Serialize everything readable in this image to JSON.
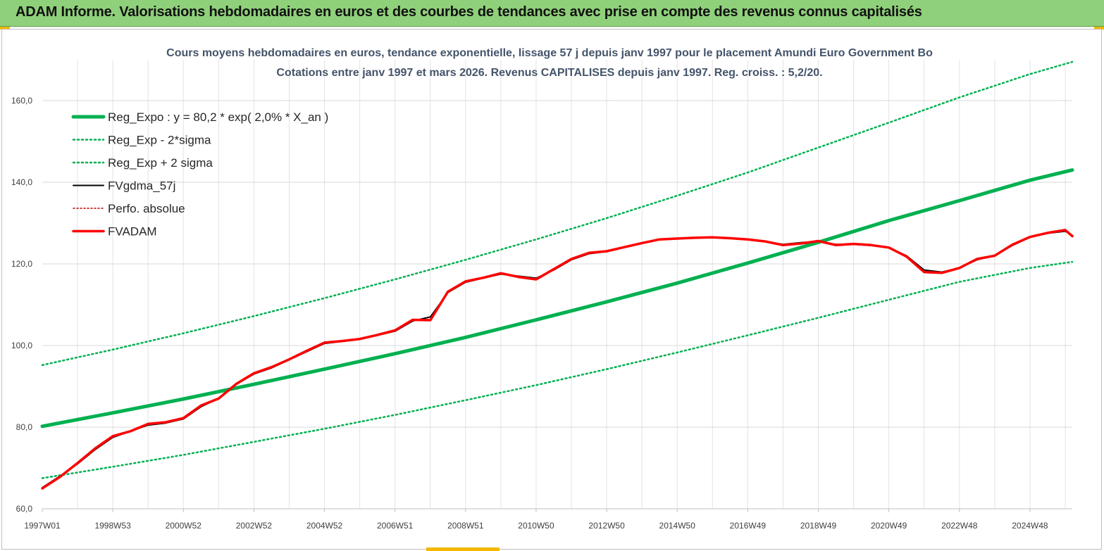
{
  "banner": {
    "title": "ADAM Informe. Valorisations hebdomadaires en euros et des courbes de tendances avec prise en compte des revenus connus capitalisés"
  },
  "colors": {
    "banner_bg": "#8fd07a",
    "regression": "#00b050",
    "band": "#00b050",
    "fvgdma": "#000000",
    "perfo": "#c00000",
    "fvadam": "#ff0000",
    "title_text": "#44546a"
  },
  "chart_data": {
    "type": "line",
    "title": "Cours moyens hebdomadaires en euros, tendance exponentielle, lissage 57 j depuis janv 1997  pour le placement Amundi Euro Government Bo",
    "subtitle": "Cotations entre janv 1997 et mars 2026. Revenus  CAPITALISES  depuis janv 1997. Reg. croiss. : 5,2/20.",
    "xlabel": "",
    "ylabel": "",
    "x_tick_labels": [
      "1997W01",
      "1998W53",
      "2000W52",
      "2002W52",
      "2004W52",
      "2006W51",
      "2008W51",
      "2010W50",
      "2012W50",
      "2014W50",
      "2016W49",
      "2018W49",
      "2020W49",
      "2022W48",
      "2024W48"
    ],
    "x_tick_years": [
      1997.0,
      1999.0,
      2001.0,
      2003.0,
      2005.0,
      2007.0,
      2009.0,
      2011.0,
      2013.0,
      2015.0,
      2017.0,
      2019.0,
      2021.0,
      2023.0,
      2025.0
    ],
    "y_tick_labels": [
      "60,0",
      "80,0",
      "100,0",
      "120,0",
      "140,0",
      "160,0"
    ],
    "xlim": [
      1997.0,
      2026.2
    ],
    "ylim": [
      60,
      170
    ],
    "y_ticks": [
      60,
      80,
      100,
      120,
      140,
      160
    ],
    "grid": true,
    "legend_position": "top-left",
    "legend": [
      "Reg_Expo : y = 80,2 * exp( 2,0% *  X_an )",
      "Reg_Exp - 2*sigma",
      "Reg_Exp + 2 sigma",
      "FVgdma_57j",
      "Perfo. absolue",
      "FVADAM"
    ],
    "series": [
      {
        "name": "Reg_Expo : y = 80,2 * exp( 2,0% *  X_an )",
        "style": "solid-thick",
        "x": [
          1997.0,
          1999.0,
          2001.0,
          2003.0,
          2005.0,
          2007.0,
          2009.0,
          2011.0,
          2013.0,
          2015.0,
          2017.0,
          2019.0,
          2021.0,
          2023.0,
          2025.0,
          2026.2
        ],
        "y": [
          80.2,
          83.5,
          86.9,
          90.5,
          94.2,
          98.0,
          102.0,
          106.3,
          110.7,
          115.3,
          120.2,
          125.3,
          130.6,
          135.5,
          140.5,
          143.0
        ]
      },
      {
        "name": "Reg_Exp - 2*sigma",
        "style": "dotted",
        "x": [
          1997.0,
          1999.0,
          2001.0,
          2003.0,
          2005.0,
          2007.0,
          2009.0,
          2011.0,
          2013.0,
          2015.0,
          2017.0,
          2019.0,
          2021.0,
          2023.0,
          2025.0,
          2026.2
        ],
        "y": [
          67.5,
          70.3,
          73.2,
          76.4,
          79.6,
          83.0,
          86.6,
          90.3,
          94.2,
          98.3,
          102.5,
          106.8,
          111.2,
          115.6,
          119.0,
          120.5
        ]
      },
      {
        "name": "Reg_Exp + 2 sigma",
        "style": "dotted",
        "x": [
          1997.0,
          1999.0,
          2001.0,
          2003.0,
          2005.0,
          2007.0,
          2009.0,
          2011.0,
          2013.0,
          2015.0,
          2017.0,
          2019.0,
          2021.0,
          2023.0,
          2025.0,
          2026.2
        ],
        "y": [
          95.2,
          99.0,
          103.0,
          107.2,
          111.6,
          116.2,
          121.0,
          126.0,
          131.2,
          136.7,
          142.4,
          148.5,
          154.6,
          160.8,
          166.5,
          169.5
        ]
      },
      {
        "name": "FVgdma_57j",
        "style": "solid-thin",
        "x": [
          1997.0,
          1997.5,
          1998.0,
          1998.5,
          1999.0,
          1999.5,
          2000.0,
          2000.5,
          2001.0,
          2001.5,
          2002.0,
          2002.5,
          2003.0,
          2003.5,
          2004.0,
          2004.5,
          2005.0,
          2005.5,
          2006.0,
          2006.5,
          2007.0,
          2007.5,
          2008.0,
          2008.5,
          2009.0,
          2009.5,
          2010.0,
          2010.5,
          2011.0,
          2011.5,
          2012.0,
          2012.5,
          2013.0,
          2013.5,
          2014.0,
          2014.5,
          2015.0,
          2015.5,
          2016.0,
          2016.5,
          2017.0,
          2017.5,
          2018.0,
          2018.5,
          2019.0,
          2019.5,
          2020.0,
          2020.5,
          2021.0,
          2021.5,
          2022.0,
          2022.5,
          2023.0,
          2023.5,
          2024.0,
          2024.5,
          2025.0,
          2025.5,
          2026.0,
          2026.2
        ],
        "y": [
          65.2,
          68.0,
          71.0,
          74.5,
          77.5,
          79.0,
          80.5,
          81.0,
          82.0,
          85.0,
          87.0,
          90.5,
          93.0,
          94.5,
          96.5,
          98.5,
          100.5,
          101.0,
          101.5,
          102.5,
          103.5,
          106.0,
          107.0,
          113.0,
          115.5,
          116.5,
          117.5,
          117.0,
          116.5,
          118.5,
          121.0,
          122.5,
          123.0,
          124.0,
          125.0,
          126.0,
          126.2,
          126.4,
          126.5,
          126.3,
          126.0,
          125.5,
          124.8,
          125.2,
          125.5,
          124.8,
          124.8,
          124.5,
          124.0,
          122.0,
          118.5,
          118.0,
          119.0,
          121.0,
          122.0,
          124.5,
          126.5,
          127.5,
          128.0,
          127.0
        ]
      },
      {
        "name": "Perfo. absolue",
        "style": "dotted-red",
        "x": [
          1997.0,
          1997.5,
          1998.0,
          1998.5,
          1999.0,
          1999.5,
          2000.0,
          2000.5,
          2001.0,
          2001.5,
          2002.0,
          2002.5,
          2003.0,
          2003.5,
          2004.0,
          2004.5,
          2005.0,
          2005.5,
          2006.0,
          2006.5,
          2007.0,
          2007.5,
          2008.0,
          2008.5,
          2009.0,
          2009.5,
          2010.0,
          2010.5,
          2011.0,
          2011.5,
          2012.0,
          2012.5,
          2013.0,
          2013.5,
          2014.0,
          2014.5,
          2015.0,
          2015.5,
          2016.0,
          2016.5,
          2017.0,
          2017.5,
          2018.0,
          2018.5,
          2019.0,
          2019.5,
          2020.0,
          2020.5,
          2021.0,
          2021.5,
          2022.0,
          2022.5,
          2023.0,
          2023.5,
          2024.0,
          2024.5,
          2025.0,
          2025.5,
          2026.0,
          2026.2
        ],
        "y": [
          65.0,
          67.8,
          71.2,
          74.8,
          77.8,
          79.0,
          80.8,
          81.2,
          82.2,
          85.3,
          87.0,
          90.6,
          93.2,
          94.7,
          96.6,
          98.7,
          100.7,
          101.1,
          101.6,
          102.6,
          103.7,
          106.3,
          106.2,
          113.2,
          115.7,
          116.6,
          117.7,
          116.8,
          116.2,
          118.7,
          121.2,
          122.7,
          123.1,
          124.1,
          125.1,
          126.0,
          126.2,
          126.4,
          126.5,
          126.3,
          126.0,
          125.5,
          124.6,
          125.0,
          125.6,
          124.6,
          124.9,
          124.6,
          124.0,
          121.8,
          118.0,
          117.8,
          119.0,
          121.2,
          122.0,
          124.7,
          126.6,
          127.6,
          128.3,
          126.8
        ]
      },
      {
        "name": "FVADAM",
        "style": "solid-red",
        "x": [
          1997.0,
          1997.5,
          1998.0,
          1998.5,
          1999.0,
          1999.5,
          2000.0,
          2000.5,
          2001.0,
          2001.5,
          2002.0,
          2002.5,
          2003.0,
          2003.5,
          2004.0,
          2004.5,
          2005.0,
          2005.5,
          2006.0,
          2006.5,
          2007.0,
          2007.5,
          2008.0,
          2008.5,
          2009.0,
          2009.5,
          2010.0,
          2010.5,
          2011.0,
          2011.5,
          2012.0,
          2012.5,
          2013.0,
          2013.5,
          2014.0,
          2014.5,
          2015.0,
          2015.5,
          2016.0,
          2016.5,
          2017.0,
          2017.5,
          2018.0,
          2018.5,
          2019.0,
          2019.5,
          2020.0,
          2020.5,
          2021.0,
          2021.5,
          2022.0,
          2022.5,
          2023.0,
          2023.5,
          2024.0,
          2024.5,
          2025.0,
          2025.5,
          2026.0,
          2026.2
        ],
        "y": [
          65.0,
          67.8,
          71.2,
          74.8,
          77.8,
          79.0,
          80.8,
          81.2,
          82.2,
          85.3,
          87.0,
          90.6,
          93.2,
          94.7,
          96.6,
          98.7,
          100.7,
          101.1,
          101.6,
          102.6,
          103.7,
          106.3,
          106.2,
          113.2,
          115.7,
          116.6,
          117.7,
          116.8,
          116.2,
          118.7,
          121.2,
          122.7,
          123.1,
          124.1,
          125.1,
          126.0,
          126.2,
          126.4,
          126.5,
          126.3,
          126.0,
          125.5,
          124.6,
          125.0,
          125.6,
          124.6,
          124.9,
          124.6,
          124.0,
          121.8,
          118.0,
          117.8,
          119.0,
          121.2,
          122.0,
          124.7,
          126.6,
          127.6,
          128.3,
          126.8
        ]
      }
    ]
  }
}
